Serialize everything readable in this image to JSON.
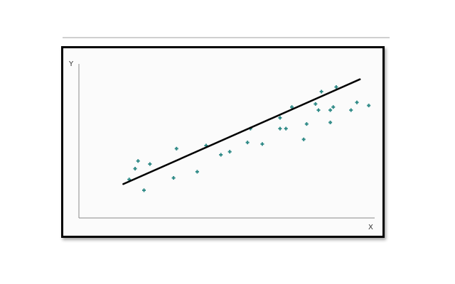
{
  "colors": {
    "points": "#2f8a87",
    "trend_line": "#000000",
    "axes": "#888888",
    "frame": "#000000"
  },
  "chart_data": {
    "type": "scatter",
    "title": "",
    "xlabel": "X",
    "ylabel": "Y",
    "xlim": [
      0,
      100
    ],
    "ylim": [
      0,
      100
    ],
    "grid": false,
    "legend": "none",
    "points": {
      "x": [
        17,
        19,
        20,
        22,
        24,
        32,
        33,
        40,
        43,
        48,
        51,
        57,
        58,
        62,
        68,
        68,
        70,
        72,
        76,
        77,
        80,
        81,
        82,
        85,
        85,
        86,
        87,
        92,
        94,
        98
      ],
      "y": [
        25,
        32,
        37,
        18,
        35,
        26,
        45,
        30,
        47,
        41,
        43,
        49,
        58,
        48,
        58,
        65,
        58,
        72,
        51,
        61,
        74,
        70,
        82,
        62,
        70,
        72,
        85,
        70,
        75,
        73
      ]
    },
    "trend_line": {
      "x": [
        15,
        95
      ],
      "y": [
        22,
        90
      ]
    }
  }
}
